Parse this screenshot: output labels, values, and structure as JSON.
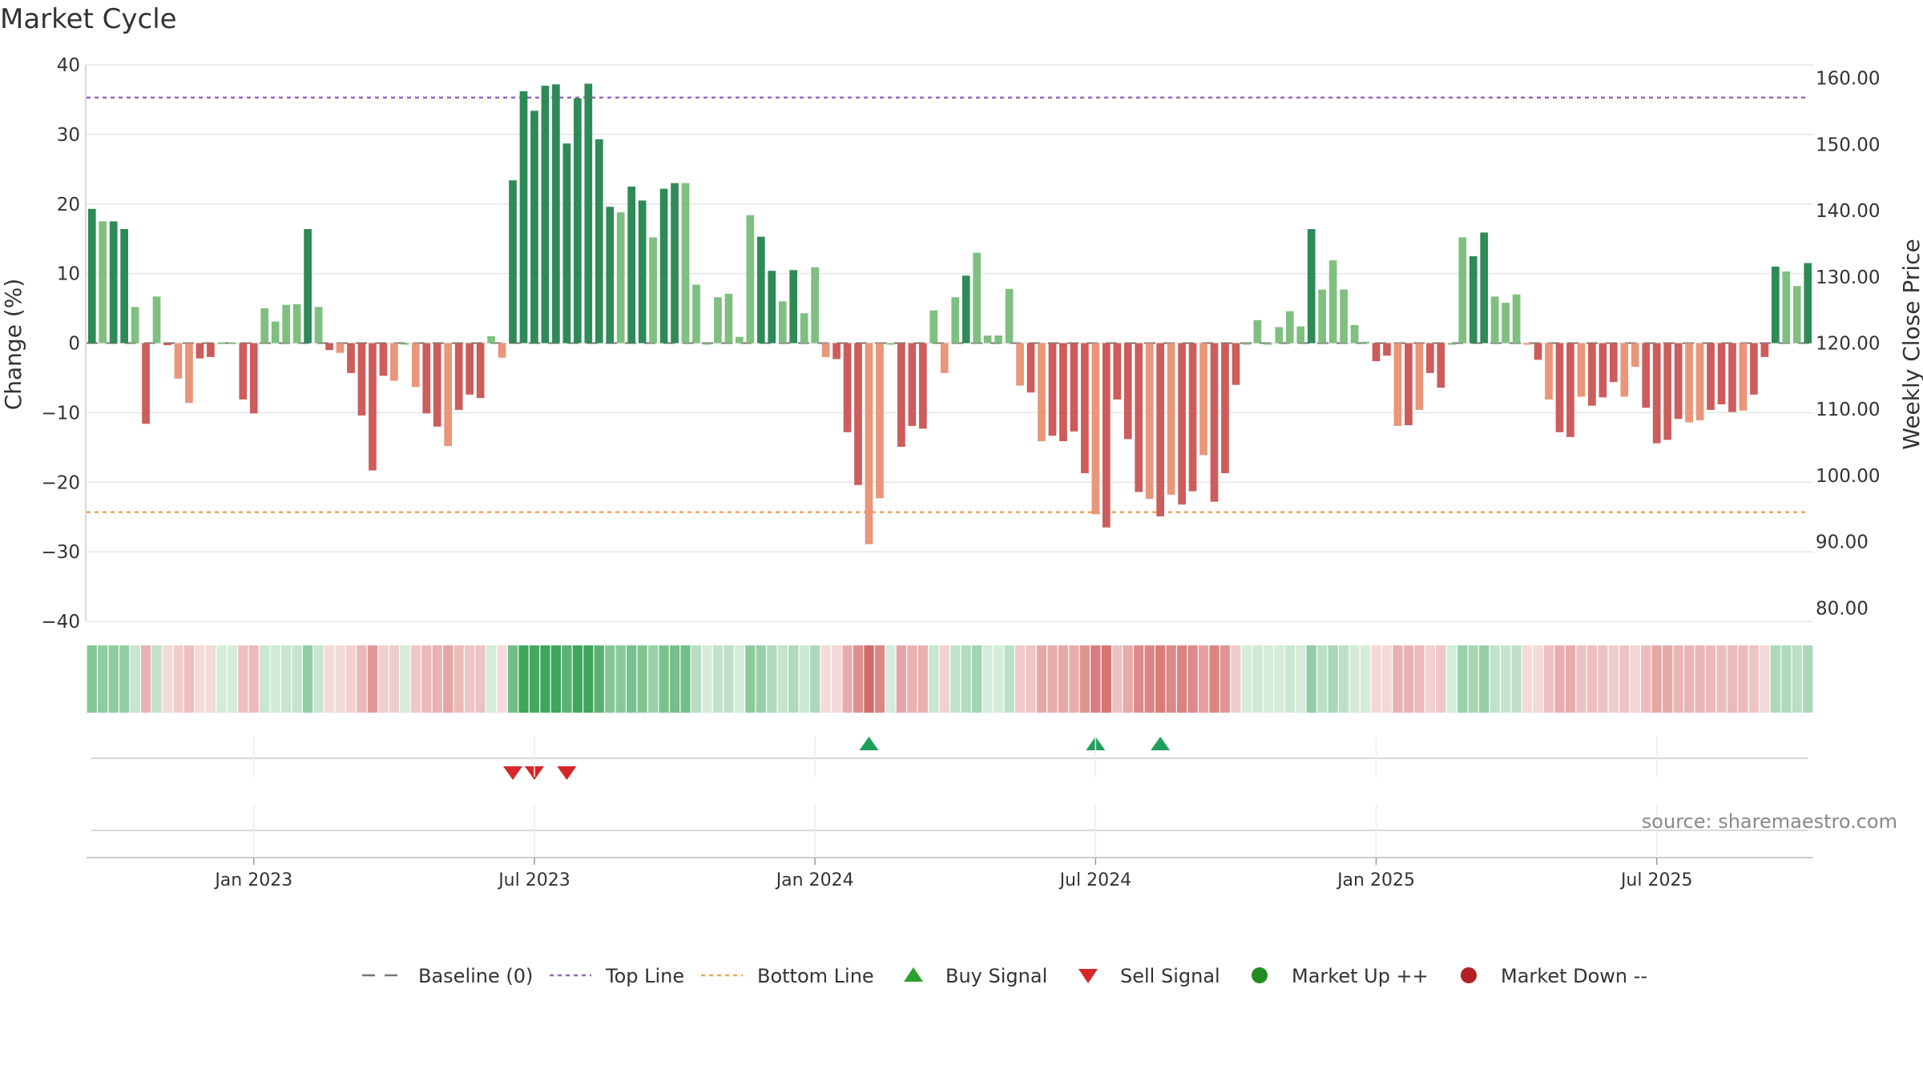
{
  "chart_data": {
    "type": "bar",
    "title": "Market Cycle",
    "ylabel": "Change (%)",
    "y2label": "Weekly Close Price",
    "ylim": [
      -40,
      40
    ],
    "y2lim": [
      78.0,
      162.0
    ],
    "yticks": [
      "40",
      "30",
      "20",
      "10",
      "0",
      "−10",
      "−20",
      "−30",
      "−40"
    ],
    "y2ticks": [
      "160.00",
      "150.00",
      "140.00",
      "130.00",
      "120.00",
      "110.00",
      "100.00",
      "90.00",
      "80.00"
    ],
    "xticks": [
      {
        "label": "Jan 2023",
        "week": 15
      },
      {
        "label": "Jul 2023",
        "week": 41
      },
      {
        "label": "Jan 2024",
        "week": 67
      },
      {
        "label": "Jul 2024",
        "week": 93
      },
      {
        "label": "Jan 2025",
        "week": 119
      },
      {
        "label": "Jul 2025",
        "week": 145
      }
    ],
    "top_line": 35.3,
    "bottom_line": -24.3,
    "series": [
      {
        "name": "Change (%)",
        "values": [
          19.3,
          17.5,
          17.5,
          16.4,
          5.2,
          -11.6,
          6.7,
          -0.3,
          -5.1,
          -8.6,
          -2.2,
          -2.0,
          0.1,
          0.1,
          -8.1,
          -10.1,
          5.0,
          3.1,
          5.5,
          5.6,
          16.4,
          5.2,
          -1.0,
          -1.4,
          -4.3,
          -10.4,
          -18.3,
          -4.7,
          -5.4,
          0.0,
          -6.3,
          -10.1,
          -12.0,
          -14.8,
          -9.6,
          -7.4,
          -7.9,
          1.0,
          -2.1,
          23.4,
          36.2,
          33.4,
          37.0,
          37.2,
          28.7,
          35.2,
          37.3,
          29.3,
          19.6,
          18.8,
          22.5,
          20.5,
          15.2,
          22.2,
          23.0,
          23.0,
          8.4,
          0.0,
          6.6,
          7.1,
          0.9,
          18.4,
          15.3,
          10.4,
          6.0,
          10.5,
          4.3,
          10.9,
          -2.0,
          -2.3,
          -12.8,
          -20.4,
          -28.9,
          -22.3,
          0.0,
          -14.9,
          -11.9,
          -12.3,
          4.7,
          -4.3,
          6.6,
          9.7,
          13.0,
          1.1,
          1.1,
          7.8,
          -6.1,
          -7.1,
          -14.1,
          -13.3,
          -14.1,
          -12.7,
          -18.7,
          -24.6,
          -26.5,
          -8.1,
          -13.8,
          -21.4,
          -22.4,
          -24.9,
          -21.8,
          -23.2,
          -21.3,
          -16.1,
          -22.8,
          -18.7,
          -6.0,
          0.0,
          3.3,
          0.0,
          2.3,
          4.6,
          2.4,
          16.4,
          7.7,
          11.9,
          7.7,
          2.6,
          0.2,
          -2.6,
          -1.8,
          -11.9,
          -11.8,
          -9.6,
          -4.3,
          -6.4,
          0.0,
          15.2,
          12.5,
          15.9,
          6.7,
          5.8,
          7.0,
          -0.2,
          -2.4,
          -8.1,
          -12.8,
          -13.5,
          -7.7,
          -9.0,
          -7.8,
          -5.6,
          -7.7,
          -3.4,
          -9.3,
          -14.4,
          -13.9,
          -10.9,
          -11.4,
          -11.1,
          -9.6,
          -8.8,
          -9.9,
          -9.7,
          -7.4,
          -2.0,
          11.0,
          10.3,
          8.2,
          11.5
        ]
      }
    ],
    "buy_signals": [
      72,
      93,
      99
    ],
    "sell_signals": [
      39,
      41,
      44
    ],
    "source": "source: sharemaestro.com",
    "legend": [
      {
        "label": "Baseline (0)",
        "kind": "dash",
        "color": "#777777"
      },
      {
        "label": "Top Line",
        "kind": "dot",
        "color": "#9467bd"
      },
      {
        "label": "Bottom Line",
        "kind": "dot",
        "color": "#f4a259"
      },
      {
        "label": "Buy Signal",
        "kind": "tri-up",
        "color": "#2ca02c"
      },
      {
        "label": "Sell Signal",
        "kind": "tri-down",
        "color": "#d62728"
      },
      {
        "label": "Market Up ++",
        "kind": "circle",
        "color": "#228b22"
      },
      {
        "label": "Market Down --",
        "kind": "circle",
        "color": "#b22222"
      }
    ]
  },
  "colors": {
    "up_strong": "#2e8b57",
    "up_light": "#7fbf7f",
    "down_strong": "#cd5c5c",
    "down_light": "#e9967a",
    "top_line": "#9467bd",
    "bottom_line": "#f4a259"
  }
}
